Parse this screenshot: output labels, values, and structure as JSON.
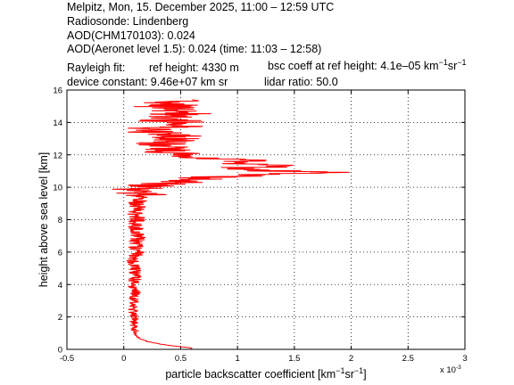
{
  "header": {
    "line1": "Melpitz, Mon, 15. December 2025, 11:00 – 12:59 UTC",
    "line2": "Radiosonde: Lindenberg",
    "line3": "AOD(CHM170103): 0.024",
    "line4": "AOD(Aeronet level 1.5): 0.024   (time: 11:03 – 12:58)",
    "rayleigh_label": "Rayleigh fit:",
    "ref_height": "ref height: 4330 m",
    "bsc_coeff_prefix": "bsc coeff at ref height: 4.1e–05 km",
    "device_constant": "device constant: 9.46e+07 km sr",
    "lidar_ratio": "lidar ratio: 50.0"
  },
  "chart_data": {
    "type": "line",
    "xlabel": "particle backscatter coefficient [km⁻¹sr⁻¹]",
    "ylabel": "height above sea level [km]",
    "x_multiplier_label": "x 10",
    "x_multiplier_exp": "-3",
    "xlim": [
      -0.0005,
      0.003
    ],
    "ylim": [
      0,
      16
    ],
    "x_ticks": [
      "-0.5",
      "0",
      "0.5",
      "1",
      "1.5",
      "2",
      "2.5",
      "3"
    ],
    "x_tick_values": [
      -0.5,
      0,
      0.5,
      1,
      1.5,
      2,
      2.5,
      3
    ],
    "y_ticks": [
      "0",
      "2",
      "4",
      "6",
      "8",
      "10",
      "12",
      "14",
      "16"
    ],
    "y_tick_values": [
      0,
      2,
      4,
      6,
      8,
      10,
      12,
      14,
      16
    ],
    "grid": true,
    "series_color": "#ff0000",
    "series": [
      {
        "profile_points": [
          [
            0.0,
            0.6
          ],
          [
            0.1,
            0.58
          ],
          [
            0.2,
            0.45
          ],
          [
            0.35,
            0.3
          ],
          [
            0.5,
            0.2
          ],
          [
            0.7,
            0.13
          ],
          [
            0.9,
            0.1
          ],
          [
            1.2,
            0.1
          ],
          [
            1.5,
            0.09
          ],
          [
            2.0,
            0.09
          ],
          [
            2.5,
            0.08
          ],
          [
            3.0,
            0.09
          ],
          [
            3.5,
            0.1
          ],
          [
            4.0,
            0.08
          ],
          [
            4.5,
            0.1
          ],
          [
            5.0,
            0.1
          ],
          [
            5.5,
            0.08
          ],
          [
            6.0,
            0.12
          ],
          [
            6.5,
            0.1
          ],
          [
            7.0,
            0.13
          ],
          [
            7.5,
            0.11
          ],
          [
            8.0,
            0.12
          ],
          [
            8.5,
            0.1
          ],
          [
            9.0,
            0.12
          ],
          [
            9.5,
            0.14
          ],
          [
            10.0,
            0.18
          ],
          [
            10.3,
            0.4
          ],
          [
            10.6,
            0.7
          ],
          [
            10.8,
            1.1
          ],
          [
            10.9,
            1.85
          ],
          [
            11.0,
            1.3
          ],
          [
            11.2,
            1.0
          ],
          [
            11.3,
            1.4
          ],
          [
            11.5,
            0.9
          ],
          [
            11.7,
            1.0
          ],
          [
            11.9,
            0.6
          ],
          [
            12.2,
            0.5
          ],
          [
            12.6,
            0.35
          ],
          [
            13.0,
            0.45
          ],
          [
            13.5,
            0.3
          ],
          [
            14.0,
            0.4
          ],
          [
            14.5,
            0.5
          ],
          [
            15.0,
            0.4
          ],
          [
            15.4,
            0.6
          ]
        ]
      }
    ]
  }
}
